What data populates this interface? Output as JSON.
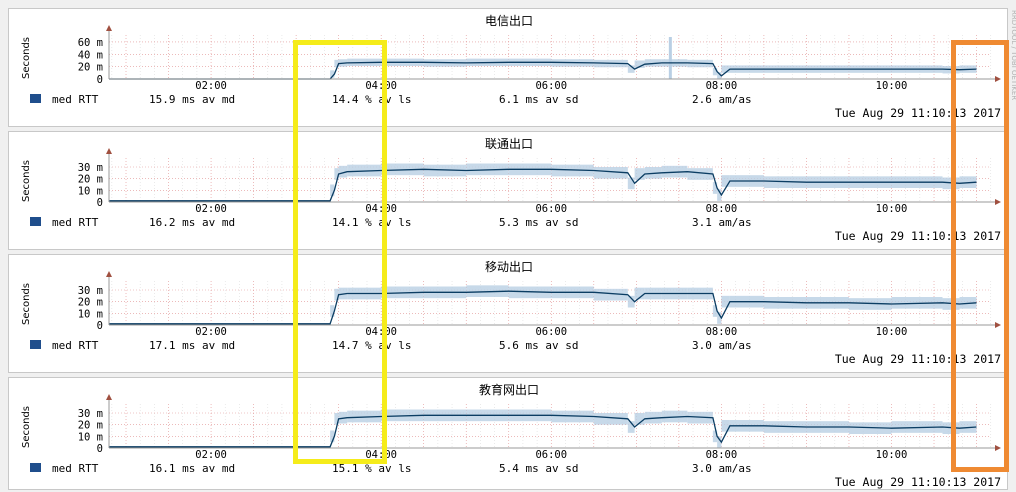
{
  "colors": {
    "line": "#0b3d63",
    "band": "#b9cfe4",
    "axis": "#999999",
    "arrow": "#a05040",
    "legend_swatch": "#1f4e8c",
    "highlight_yellow": "#f5ec1a",
    "highlight_orange": "#ef8a32"
  },
  "side_credit": "RRDTOOL / TOBI OETIKER",
  "chart_data": [
    {
      "type": "line",
      "title": "电信出口",
      "ylabel": "Seconds",
      "yticks": [
        "60 m",
        "40 m",
        "20 m",
        "0"
      ],
      "ytick_values": [
        0.06,
        0.04,
        0.02,
        0
      ],
      "ylim": [
        0,
        0.068
      ],
      "xticks": [
        "02:00",
        "04:00",
        "06:00",
        "08:00",
        "10:00"
      ],
      "xtick_hours": [
        2,
        4,
        6,
        8,
        10
      ],
      "xlim_hours": [
        0.8,
        11.17
      ],
      "series": [
        {
          "unit": "ms",
          "points": [
            [
              0.8,
              0
            ],
            [
              3.0,
              0
            ],
            [
              3.4,
              0
            ],
            [
              3.45,
              0.008
            ],
            [
              3.5,
              0.025
            ],
            [
              3.6,
              0.026
            ],
            [
              4.0,
              0.027
            ],
            [
              4.5,
              0.027
            ],
            [
              5.0,
              0.026
            ],
            [
              5.5,
              0.027
            ],
            [
              6.0,
              0.027
            ],
            [
              6.5,
              0.026
            ],
            [
              6.9,
              0.025
            ],
            [
              6.98,
              0.016
            ],
            [
              7.1,
              0.024
            ],
            [
              7.3,
              0.026
            ],
            [
              7.6,
              0.026
            ],
            [
              7.9,
              0.025
            ],
            [
              7.95,
              0.012
            ],
            [
              8.0,
              0.005
            ],
            [
              8.1,
              0.016
            ],
            [
              8.5,
              0.016
            ],
            [
              9.0,
              0.016
            ],
            [
              9.5,
              0.016
            ],
            [
              10.0,
              0.016
            ],
            [
              10.6,
              0.016
            ],
            [
              10.8,
              0.015
            ],
            [
              11.0,
              0.016
            ]
          ],
          "band": 0.006,
          "spike_at": 7.4
        }
      ],
      "legend": {
        "label": "med RTT",
        "med": "15.9 ms av md",
        "ls": "14.4 % av ls",
        "sd": "6.1 ms av sd",
        "amas": "2.6 am/as"
      },
      "timestamp": "Tue Aug 29 11:10:13 2017"
    },
    {
      "type": "line",
      "title": "联通出口",
      "ylabel": "Seconds",
      "yticks": [
        "30 m",
        "20 m",
        "10 m",
        "0"
      ],
      "ytick_values": [
        0.03,
        0.02,
        0.01,
        0
      ],
      "ylim": [
        0,
        0.036
      ],
      "xticks": [
        "02:00",
        "04:00",
        "06:00",
        "08:00",
        "10:00"
      ],
      "xtick_hours": [
        2,
        4,
        6,
        8,
        10
      ],
      "xlim_hours": [
        0.8,
        11.17
      ],
      "series": [
        {
          "unit": "ms",
          "points": [
            [
              0.8,
              0.001
            ],
            [
              3.0,
              0.001
            ],
            [
              3.4,
              0.001
            ],
            [
              3.45,
              0.01
            ],
            [
              3.5,
              0.024
            ],
            [
              3.6,
              0.026
            ],
            [
              4.0,
              0.027
            ],
            [
              4.5,
              0.028
            ],
            [
              5.0,
              0.027
            ],
            [
              5.5,
              0.028
            ],
            [
              6.0,
              0.028
            ],
            [
              6.5,
              0.027
            ],
            [
              6.9,
              0.025
            ],
            [
              6.98,
              0.016
            ],
            [
              7.1,
              0.024
            ],
            [
              7.3,
              0.025
            ],
            [
              7.6,
              0.026
            ],
            [
              7.9,
              0.024
            ],
            [
              7.95,
              0.012
            ],
            [
              8.0,
              0.006
            ],
            [
              8.1,
              0.018
            ],
            [
              8.5,
              0.018
            ],
            [
              9.0,
              0.017
            ],
            [
              9.5,
              0.017
            ],
            [
              10.0,
              0.017
            ],
            [
              10.6,
              0.017
            ],
            [
              10.8,
              0.016
            ],
            [
              11.0,
              0.017
            ]
          ],
          "band": 0.005
        }
      ],
      "legend": {
        "label": "med RTT",
        "med": "16.2 ms av md",
        "ls": "14.1 % av ls",
        "sd": "5.3 ms av sd",
        "amas": "3.1 am/as"
      },
      "timestamp": "Tue Aug 29 11:10:13 2017"
    },
    {
      "type": "line",
      "title": "移动出口",
      "ylabel": "Seconds",
      "yticks": [
        "30 m",
        "20 m",
        "10 m",
        "0"
      ],
      "ytick_values": [
        0.03,
        0.02,
        0.01,
        0
      ],
      "ylim": [
        0,
        0.036
      ],
      "xticks": [
        "02:00",
        "04:00",
        "06:00",
        "08:00",
        "10:00"
      ],
      "xtick_hours": [
        2,
        4,
        6,
        8,
        10
      ],
      "xlim_hours": [
        0.8,
        11.17
      ],
      "series": [
        {
          "unit": "ms",
          "points": [
            [
              0.8,
              0.001
            ],
            [
              3.0,
              0.001
            ],
            [
              3.4,
              0.001
            ],
            [
              3.45,
              0.012
            ],
            [
              3.5,
              0.026
            ],
            [
              3.6,
              0.027
            ],
            [
              4.0,
              0.027
            ],
            [
              4.5,
              0.028
            ],
            [
              5.0,
              0.028
            ],
            [
              5.5,
              0.029
            ],
            [
              6.0,
              0.028
            ],
            [
              6.5,
              0.028
            ],
            [
              6.9,
              0.026
            ],
            [
              6.98,
              0.02
            ],
            [
              7.1,
              0.027
            ],
            [
              7.3,
              0.027
            ],
            [
              7.6,
              0.027
            ],
            [
              7.9,
              0.027
            ],
            [
              7.95,
              0.012
            ],
            [
              8.0,
              0.006
            ],
            [
              8.1,
              0.02
            ],
            [
              8.5,
              0.02
            ],
            [
              9.0,
              0.019
            ],
            [
              9.5,
              0.019
            ],
            [
              10.0,
              0.018
            ],
            [
              10.6,
              0.019
            ],
            [
              10.8,
              0.018
            ],
            [
              11.0,
              0.019
            ]
          ],
          "band": 0.005
        }
      ],
      "legend": {
        "label": "med RTT",
        "med": "17.1 ms av md",
        "ls": "14.7 % av ls",
        "sd": "5.6 ms av sd",
        "amas": "3.0 am/as"
      },
      "timestamp": "Tue Aug 29 11:10:13 2017"
    },
    {
      "type": "line",
      "title": "教育网出口",
      "ylabel": "Seconds",
      "yticks": [
        "30 m",
        "20 m",
        "10 m",
        "0"
      ],
      "ytick_values": [
        0.03,
        0.02,
        0.01,
        0
      ],
      "ylim": [
        0,
        0.036
      ],
      "xticks": [
        "02:00",
        "04:00",
        "06:00",
        "08:00",
        "10:00"
      ],
      "xtick_hours": [
        2,
        4,
        6,
        8,
        10
      ],
      "xlim_hours": [
        0.8,
        11.17
      ],
      "series": [
        {
          "unit": "ms",
          "points": [
            [
              0.8,
              0.001
            ],
            [
              3.0,
              0.001
            ],
            [
              3.4,
              0.001
            ],
            [
              3.45,
              0.01
            ],
            [
              3.5,
              0.025
            ],
            [
              3.6,
              0.026
            ],
            [
              4.0,
              0.027
            ],
            [
              4.5,
              0.028
            ],
            [
              5.0,
              0.028
            ],
            [
              5.5,
              0.028
            ],
            [
              6.0,
              0.028
            ],
            [
              6.5,
              0.027
            ],
            [
              6.9,
              0.025
            ],
            [
              6.98,
              0.018
            ],
            [
              7.1,
              0.025
            ],
            [
              7.3,
              0.026
            ],
            [
              7.6,
              0.027
            ],
            [
              7.9,
              0.026
            ],
            [
              7.95,
              0.01
            ],
            [
              8.0,
              0.005
            ],
            [
              8.1,
              0.019
            ],
            [
              8.5,
              0.019
            ],
            [
              9.0,
              0.018
            ],
            [
              9.5,
              0.018
            ],
            [
              10.0,
              0.017
            ],
            [
              10.6,
              0.018
            ],
            [
              10.8,
              0.017
            ],
            [
              11.0,
              0.018
            ]
          ],
          "band": 0.005
        }
      ],
      "legend": {
        "label": "med RTT",
        "med": "16.1 ms av md",
        "ls": "15.1 % av ls",
        "sd": "5.4 ms av sd",
        "amas": "3.0 am/as"
      },
      "timestamp": "Tue Aug 29 11:10:13 2017"
    }
  ]
}
